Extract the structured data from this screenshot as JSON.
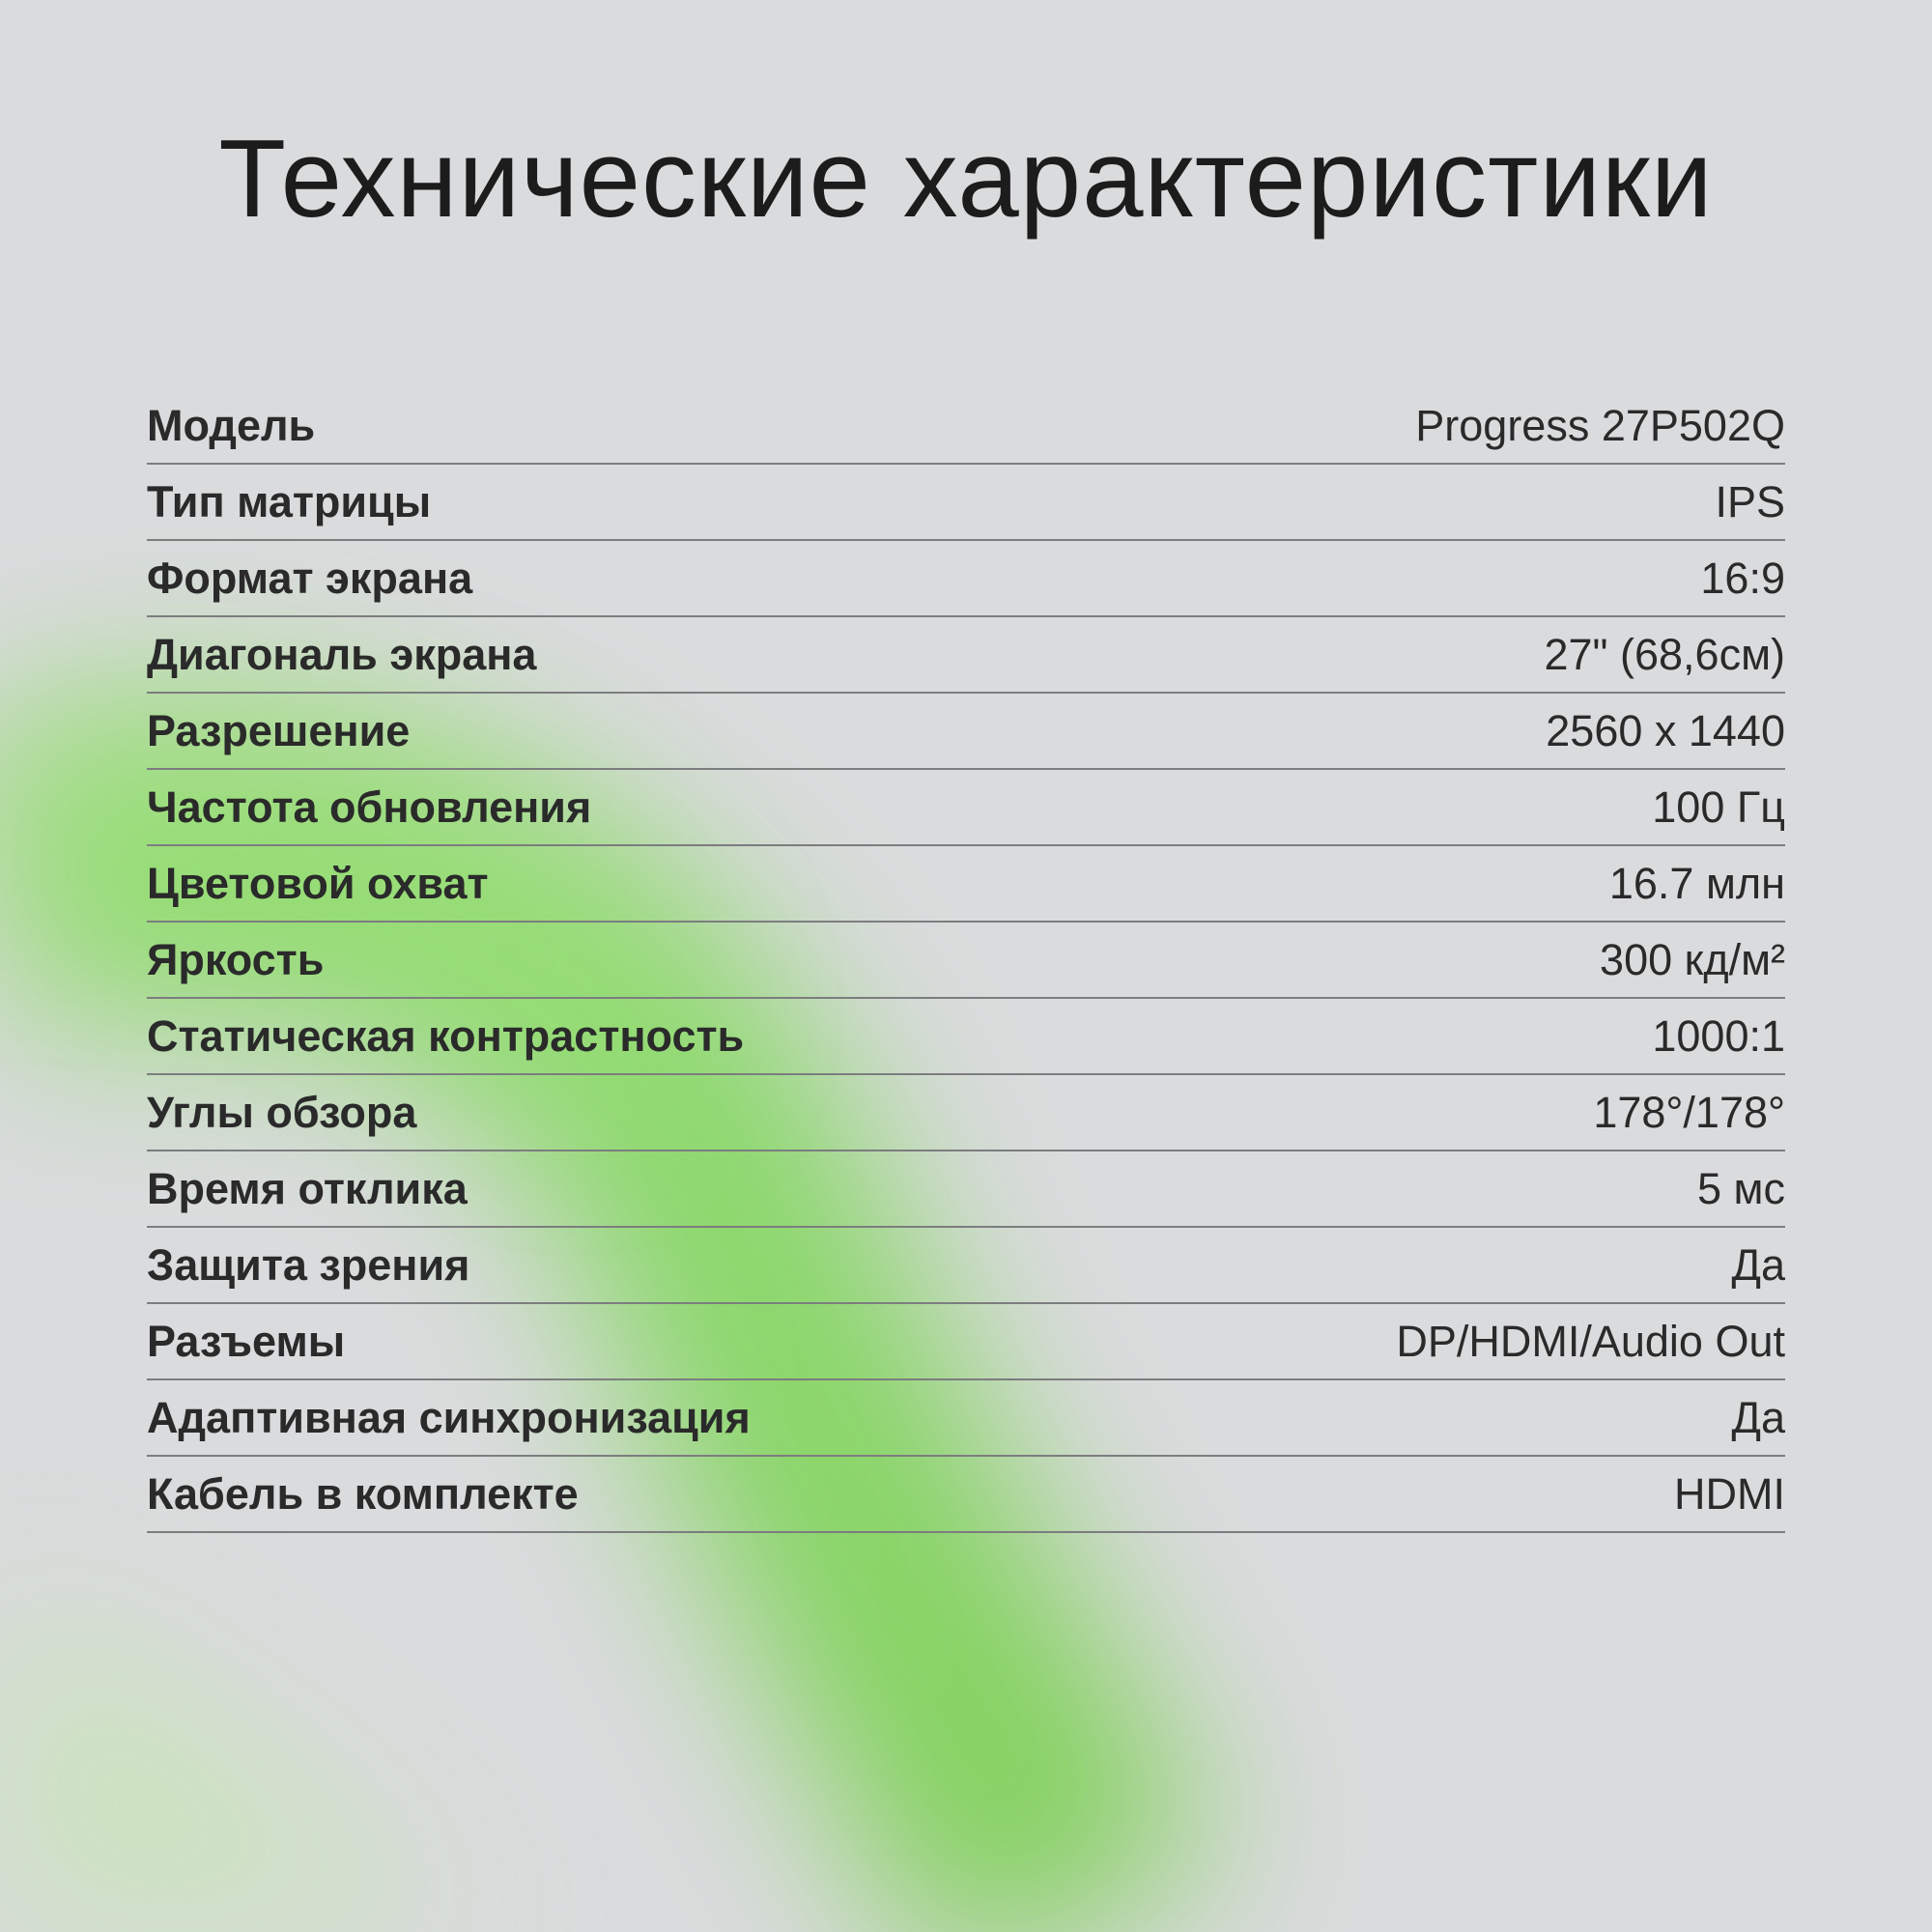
{
  "title": "Технические характеристики",
  "accent_color": "#7ed957",
  "specs": [
    {
      "label": "Модель",
      "value": "Progress 27P502Q"
    },
    {
      "label": "Тип матрицы",
      "value": "IPS"
    },
    {
      "label": "Формат экрана",
      "value": "16:9"
    },
    {
      "label": "Диагональ экрана",
      "value": "27\" (68,6см)"
    },
    {
      "label": "Разрешение",
      "value": "2560 x 1440"
    },
    {
      "label": "Частота обновления",
      "value": "100 Гц"
    },
    {
      "label": "Цветовой охват",
      "value": "16.7 млн"
    },
    {
      "label": "Яркость",
      "value": "300 кд/м²"
    },
    {
      "label": "Статическая контрастность",
      "value": "1000:1"
    },
    {
      "label": "Углы обзора",
      "value": "178°/178°"
    },
    {
      "label": "Время отклика",
      "value": "5 мс"
    },
    {
      "label": "Защита зрения",
      "value": "Да"
    },
    {
      "label": "Разъемы",
      "value": "DP/HDMI/Audio Out"
    },
    {
      "label": "Адаптивная синхронизация",
      "value": "Да"
    },
    {
      "label": "Кабель в комплекте",
      "value": "HDMI"
    }
  ]
}
